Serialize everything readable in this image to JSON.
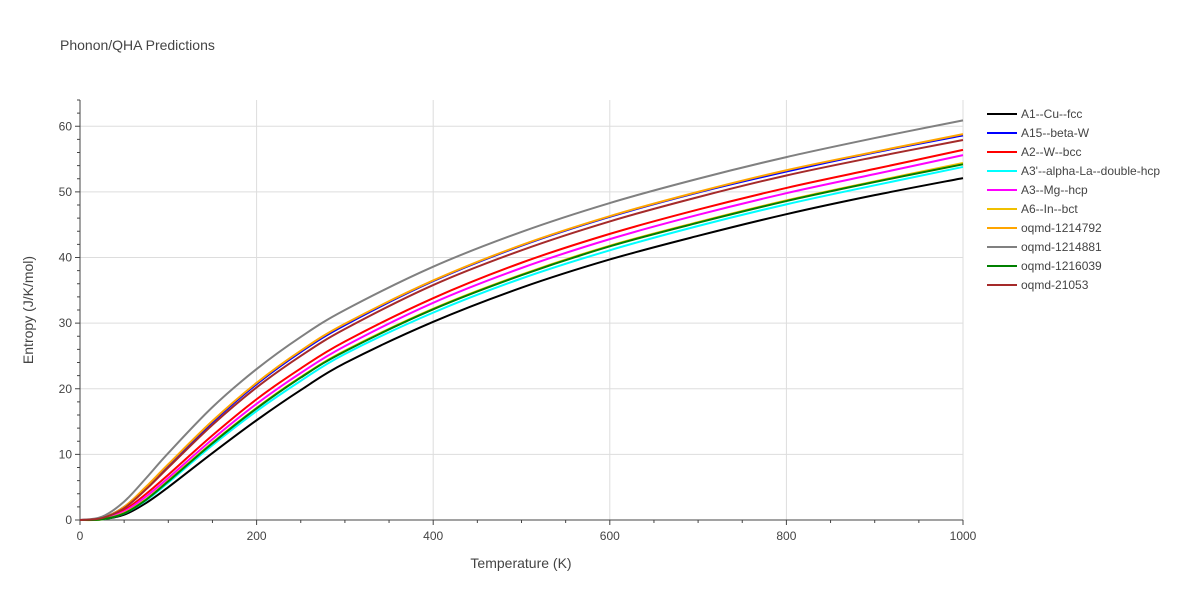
{
  "chart_data": {
    "type": "line",
    "title": "Phonon/QHA Predictions",
    "xlabel": "Temperature (K)",
    "ylabel": "Entropy (J/K/mol)",
    "xlim": [
      0,
      1000
    ],
    "ylim": [
      0,
      64
    ],
    "xticks": [
      0,
      200,
      400,
      600,
      800,
      1000
    ],
    "yticks": [
      0,
      10,
      20,
      30,
      40,
      50,
      60
    ],
    "grid": true,
    "legend_position": "right",
    "x": [
      0,
      25,
      50,
      75,
      100,
      150,
      200,
      250,
      300,
      400,
      500,
      600,
      700,
      800,
      900,
      1000
    ],
    "series": [
      {
        "name": "A1--Cu--fcc",
        "color": "#000000",
        "values": [
          0,
          0.1,
          0.8,
          2.6,
          5.0,
          10.2,
          15.2,
          19.8,
          23.9,
          30.2,
          35.4,
          39.7,
          43.3,
          46.6,
          49.5,
          52.1
        ]
      },
      {
        "name": "A15--beta-W",
        "color": "#0000ff",
        "values": [
          0,
          0.3,
          2.0,
          5.0,
          8.3,
          14.9,
          20.7,
          25.6,
          29.7,
          36.4,
          41.8,
          46.2,
          49.9,
          53.1,
          56.0,
          58.6
        ]
      },
      {
        "name": "A2--W--bcc",
        "color": "#ff0000",
        "values": [
          0,
          0.2,
          1.5,
          4.0,
          6.9,
          12.9,
          18.4,
          23.1,
          27.2,
          33.8,
          39.2,
          43.6,
          47.3,
          50.6,
          53.5,
          56.4
        ]
      },
      {
        "name": "A3'--alpha-La--double-hcp",
        "color": "#00ffff",
        "values": [
          0,
          0.1,
          1.0,
          3.0,
          5.7,
          11.4,
          16.6,
          21.2,
          25.3,
          31.6,
          36.8,
          41.1,
          44.8,
          48.1,
          51.0,
          53.8
        ]
      },
      {
        "name": "A3--Mg--hcp",
        "color": "#ff00ff",
        "values": [
          0,
          0.2,
          1.3,
          3.6,
          6.4,
          12.3,
          17.7,
          22.4,
          26.5,
          33.1,
          38.4,
          42.8,
          46.5,
          49.8,
          52.7,
          55.6
        ]
      },
      {
        "name": "A6--In--bct",
        "color": "#f0c000",
        "values": [
          0,
          0.1,
          1.1,
          3.2,
          6.0,
          11.8,
          17.1,
          21.8,
          25.8,
          32.2,
          37.4,
          41.8,
          45.4,
          48.7,
          51.6,
          54.4
        ]
      },
      {
        "name": "oqmd-1214792",
        "color": "#ffa500",
        "values": [
          0,
          0.3,
          2.0,
          5.1,
          8.5,
          15.1,
          20.9,
          25.8,
          29.9,
          36.5,
          41.9,
          46.3,
          50.0,
          53.3,
          56.1,
          58.8
        ]
      },
      {
        "name": "oqmd-1214881",
        "color": "#808080",
        "values": [
          0,
          0.5,
          2.8,
          6.4,
          10.2,
          17.2,
          23.0,
          27.9,
          32.0,
          38.6,
          43.9,
          48.3,
          52.0,
          55.3,
          58.2,
          60.9
        ]
      },
      {
        "name": "oqmd-1216039",
        "color": "#008000",
        "values": [
          0,
          0.1,
          1.0,
          3.1,
          5.9,
          11.7,
          17.0,
          21.7,
          25.7,
          32.1,
          37.3,
          41.7,
          45.3,
          48.6,
          51.5,
          54.2
        ]
      },
      {
        "name": "oqmd-21053",
        "color": "#a52a2a",
        "values": [
          0,
          0.3,
          1.8,
          4.7,
          8.0,
          14.5,
          20.2,
          25.0,
          29.1,
          35.8,
          41.1,
          45.5,
          49.2,
          52.5,
          55.3,
          57.9
        ]
      }
    ]
  }
}
